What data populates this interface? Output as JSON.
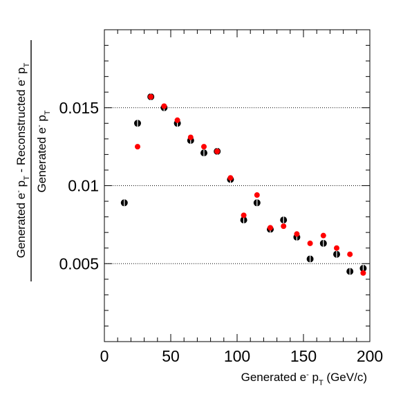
{
  "chart_data": {
    "type": "scatter",
    "title": "",
    "xlabel": {
      "main": "Generated e",
      "sup": "-",
      "mid": " p",
      "sub": "T",
      "tail": " (GeV/c)"
    },
    "ylabel_numerator": {
      "p1": "Generated e",
      "p1_sup": "-",
      "p2": " p",
      "p2_sub": "T",
      "p3": " - Reconstructed e",
      "p3_sup": "-",
      "p4": " p",
      "p4_sub": "T"
    },
    "ylabel_denominator": {
      "p1": "Generated e",
      "p1_sup": "-",
      "p2": " p",
      "p2_sub": "T"
    },
    "xlim": [
      0,
      200
    ],
    "ylim": [
      0,
      0.02
    ],
    "x_ticks": [
      {
        "value": 0,
        "label": "0"
      },
      {
        "value": 50,
        "label": "50"
      },
      {
        "value": 100,
        "label": "100"
      },
      {
        "value": 150,
        "label": "150"
      },
      {
        "value": 200,
        "label": "200"
      }
    ],
    "y_ticks": [
      {
        "value": 0.005,
        "label": "0.005"
      },
      {
        "value": 0.01,
        "label": "0.01"
      },
      {
        "value": 0.015,
        "label": "0.015"
      }
    ],
    "grid": "horizontal dotted at labeled y ticks",
    "series": [
      {
        "color": "#000000",
        "points": [
          {
            "x": 15,
            "y": 0.0089
          },
          {
            "x": 25,
            "y": 0.014
          },
          {
            "x": 35,
            "y": 0.0157
          },
          {
            "x": 45,
            "y": 0.015
          },
          {
            "x": 55,
            "y": 0.014
          },
          {
            "x": 65,
            "y": 0.0129
          },
          {
            "x": 75,
            "y": 0.0121
          },
          {
            "x": 85,
            "y": 0.0122
          },
          {
            "x": 95,
            "y": 0.0104
          },
          {
            "x": 105,
            "y": 0.0078
          },
          {
            "x": 115,
            "y": 0.0089
          },
          {
            "x": 125,
            "y": 0.0072
          },
          {
            "x": 135,
            "y": 0.0078
          },
          {
            "x": 145,
            "y": 0.0067
          },
          {
            "x": 155,
            "y": 0.0053
          },
          {
            "x": 165,
            "y": 0.0063
          },
          {
            "x": 175,
            "y": 0.0056
          },
          {
            "x": 185,
            "y": 0.0045
          },
          {
            "x": 195,
            "y": 0.0047
          }
        ]
      },
      {
        "color": "#ff0000",
        "points": [
          {
            "x": 25,
            "y": 0.0125
          },
          {
            "x": 35,
            "y": 0.0157
          },
          {
            "x": 45,
            "y": 0.0151
          },
          {
            "x": 55,
            "y": 0.0142
          },
          {
            "x": 65,
            "y": 0.0131
          },
          {
            "x": 75,
            "y": 0.0125
          },
          {
            "x": 85,
            "y": 0.0122
          },
          {
            "x": 95,
            "y": 0.0105
          },
          {
            "x": 105,
            "y": 0.0081
          },
          {
            "x": 115,
            "y": 0.0094
          },
          {
            "x": 125,
            "y": 0.0073
          },
          {
            "x": 135,
            "y": 0.0074
          },
          {
            "x": 145,
            "y": 0.0069
          },
          {
            "x": 155,
            "y": 0.0063
          },
          {
            "x": 165,
            "y": 0.0068
          },
          {
            "x": 175,
            "y": 0.006
          },
          {
            "x": 185,
            "y": 0.0056
          },
          {
            "x": 195,
            "y": 0.0044
          }
        ]
      }
    ]
  }
}
